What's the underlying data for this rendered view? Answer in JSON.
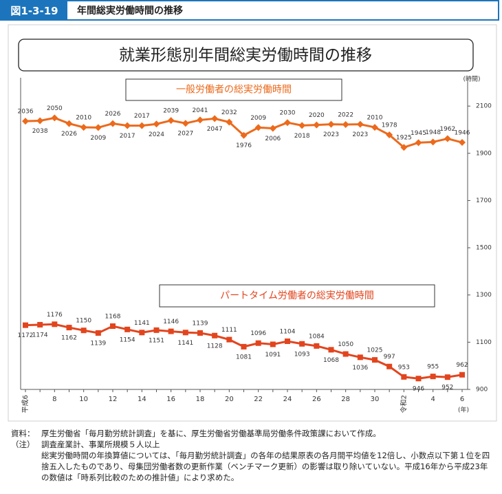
{
  "header": {
    "figure_no": "図1-3-19",
    "title": "年間総実労働時間の推移"
  },
  "chart_data": {
    "type": "line",
    "title": "就業形態別年間総実労働時間の推移",
    "categories": [
      "平成6",
      null,
      "8",
      null,
      "10",
      null,
      "12",
      null,
      "14",
      null,
      "16",
      null,
      "18",
      null,
      "20",
      null,
      "22",
      null,
      "24",
      null,
      "26",
      null,
      "28",
      null,
      "30",
      null,
      "令和2",
      null,
      "4",
      null,
      "6"
    ],
    "x_unit": "(年)",
    "y_unit": "(時間)",
    "ylim": [
      900,
      2220
    ],
    "yticks": [
      900,
      1100,
      1300,
      1500,
      1700,
      1900,
      2100
    ],
    "y_axis_side": "right",
    "grid": false,
    "series": [
      {
        "name": "一般労働者の総実労働時間",
        "color": "#ec6a1c",
        "marker": "diamond",
        "values": [
          2036,
          2038,
          2050,
          2026,
          2010,
          2009,
          2026,
          2017,
          2017,
          2024,
          2039,
          2027,
          2041,
          2047,
          2032,
          1976,
          2009,
          2006,
          2030,
          2018,
          2020,
          2023,
          2022,
          2023,
          2010,
          1978,
          1925,
          1945,
          1948,
          1962,
          1946
        ]
      },
      {
        "name": "パートタイム労働者の総実労働時間",
        "color": "#e2451e",
        "marker": "square",
        "values": [
          1172,
          1174,
          1176,
          1162,
          1150,
          1139,
          1168,
          1154,
          1141,
          1151,
          1146,
          1141,
          1139,
          1128,
          1111,
          1081,
          1096,
          1091,
          1104,
          1093,
          1084,
          1068,
          1050,
          1036,
          1025,
          997,
          953,
          946,
          955,
          952,
          962
        ]
      }
    ]
  },
  "notes": {
    "source_label": "資料：",
    "source": "厚生労働省「毎月勤労統計調査」を基に、厚生労働省労働基準局労働条件政策課において作成。",
    "note_label": "（注）",
    "items": [
      "調査産業計、事業所規模５人以上",
      "総実労働時間の年換算値については、「毎月勤労統計調査」の各年の結果原表の各月間平均値を12倍し、小数点以下第１位を四捨五入したものであり、母集団労働者数の更新作業（ベンチマーク更新）の影響は取り除いていない。平成16年から平成23年の数値は「時系列比較のための推計値」により求めた。"
    ]
  }
}
